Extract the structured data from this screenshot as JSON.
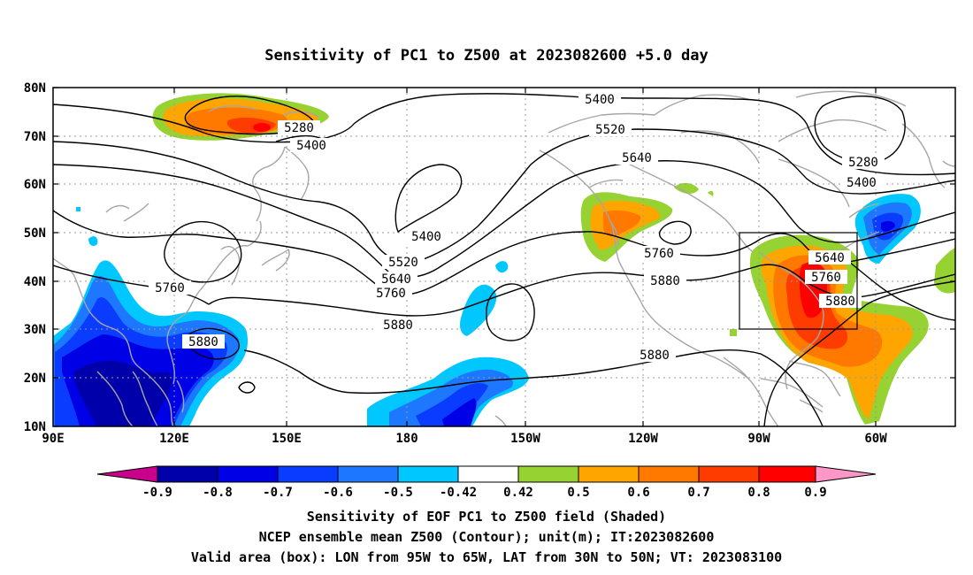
{
  "title": "Sensitivity of PC1 to Z500 at 2023082600 +5.0 day",
  "lat_labels": [
    "80N",
    "70N",
    "60N",
    "50N",
    "40N",
    "30N",
    "20N",
    "10N"
  ],
  "lon_labels": [
    "90E",
    "120E",
    "150E",
    "180",
    "150W",
    "120W",
    "90W",
    "60W"
  ],
  "contour_labels": {
    "c5400_top": "5400",
    "c5520_top": "5520",
    "c5640_top": "5640",
    "c5280_right": "5280",
    "c5400_right": "5400",
    "c5280_left": "5280",
    "c5400_left": "5400",
    "c5400_mid": "5400",
    "c5520_mid": "5520",
    "c5640_mid": "5640",
    "c5760_mid": "5760",
    "c5880_mid": "5880",
    "c5760_w": "5760",
    "c5880_w": "5880",
    "c5760_e": "5760",
    "c5880_e": "5880",
    "c5880_s": "5880",
    "c5640_box": "5640",
    "c5760_box": "5760",
    "c5880_box": "5880"
  },
  "colorbar": {
    "labels": [
      "-0.9",
      "-0.8",
      "-0.7",
      "-0.6",
      "-0.5",
      "-0.42",
      "0.42",
      "0.5",
      "0.6",
      "0.7",
      "0.8",
      "0.9"
    ],
    "colors": [
      "#c8008c",
      "#0000aa",
      "#0000e6",
      "#0a3cff",
      "#1e78ff",
      "#00c8ff",
      "#ffffff",
      "#96d232",
      "#ffa500",
      "#ff7800",
      "#ff3c00",
      "#ff0000",
      "#ff96c8"
    ]
  },
  "caption": {
    "line1": "Sensitivity of EOF PC1 to Z500 field (Shaded)",
    "line2": "NCEP ensemble mean Z500 (Contour); unit(m); IT:2023082600",
    "line3": "Valid area (box): LON from 95W to 65W, LAT from 30N to 50N; VT: 2023083100"
  }
}
